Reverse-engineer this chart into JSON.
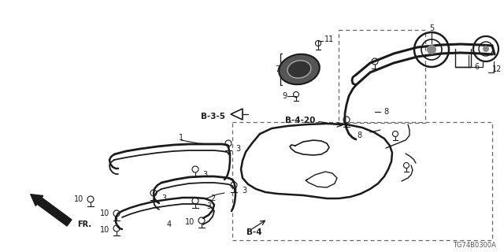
{
  "background_color": "#ffffff",
  "line_color": "#1a1a1a",
  "dashed_line_color": "#666666",
  "figsize": [
    6.4,
    3.2
  ],
  "dpi": 100,
  "diagram_code": "TG74B0300A"
}
